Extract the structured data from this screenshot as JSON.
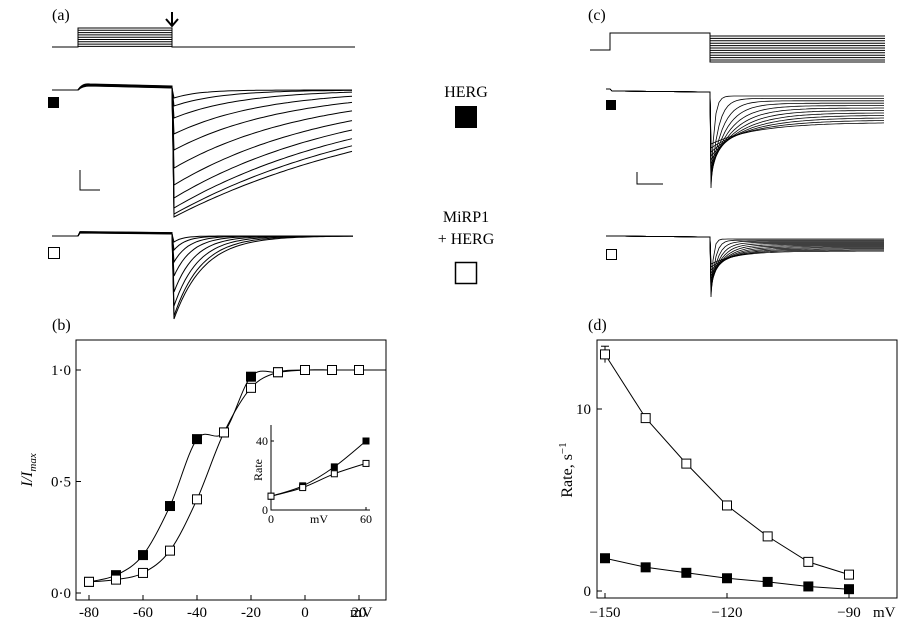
{
  "panels": {
    "a": "(a)",
    "b": "(b)",
    "c": "(c)",
    "d": "(d)"
  },
  "legend": {
    "herg": "HERG",
    "mirp1_line1": "MiRP1",
    "mirp1_line2": "+ HERG"
  },
  "chart_data": [
    {
      "id": "b",
      "type": "line",
      "ylabel": "I/I",
      "ylabel_sub": "max",
      "xunit": "mV",
      "xlim": [
        -85,
        30
      ],
      "ylim": [
        0,
        1
      ],
      "x_ticks": [
        "-80",
        "-60",
        "-40",
        "-20",
        "0",
        "20"
      ],
      "y_ticks": [
        "0·0",
        "0·5",
        "1·0"
      ],
      "x": [
        -80,
        -70,
        -60,
        -50,
        -40,
        -30,
        -20,
        -10,
        0,
        10,
        20
      ],
      "series": [
        {
          "marker": "filled-square",
          "values": [
            0.05,
            0.08,
            0.17,
            0.39,
            0.69,
            0.72,
            0.97,
            0.99,
            1.0,
            1.0,
            1.0
          ]
        },
        {
          "marker": "open-square",
          "values": [
            0.05,
            0.06,
            0.09,
            0.19,
            0.42,
            0.72,
            0.92,
            0.99,
            1.0,
            1.0,
            1.0
          ]
        }
      ],
      "inset": {
        "ylabel": "Rate",
        "xlabel": "mV",
        "x_ticks": [
          "0",
          "60"
        ],
        "y_ticks": [
          "0",
          "40"
        ],
        "xlim": [
          0,
          60
        ],
        "ylim": [
          0,
          40
        ],
        "x": [
          0,
          20,
          40,
          60
        ],
        "series": [
          {
            "marker": "filled-square",
            "values": [
              8,
              14,
              25,
              40
            ]
          },
          {
            "marker": "open-square",
            "values": [
              8,
              13,
              21,
              27
            ]
          }
        ]
      }
    },
    {
      "id": "d",
      "type": "line",
      "ylabel": "Rate, s",
      "ylabel_sup": "−1",
      "xunit": "mV",
      "xlim": [
        -152,
        -88
      ],
      "ylim": [
        0,
        14
      ],
      "x_ticks": [
        "−150",
        "−120",
        "−90"
      ],
      "y_ticks": [
        "0",
        "10"
      ],
      "x": [
        -150,
        -140,
        -130,
        -120,
        -110,
        -100,
        -90
      ],
      "series": [
        {
          "marker": "open-square",
          "values": [
            13.0,
            9.5,
            7.0,
            4.7,
            3.0,
            1.6,
            0.9
          ]
        },
        {
          "marker": "filled-square",
          "values": [
            1.8,
            1.3,
            1.0,
            0.7,
            0.5,
            0.25,
            0.1
          ]
        }
      ]
    }
  ]
}
